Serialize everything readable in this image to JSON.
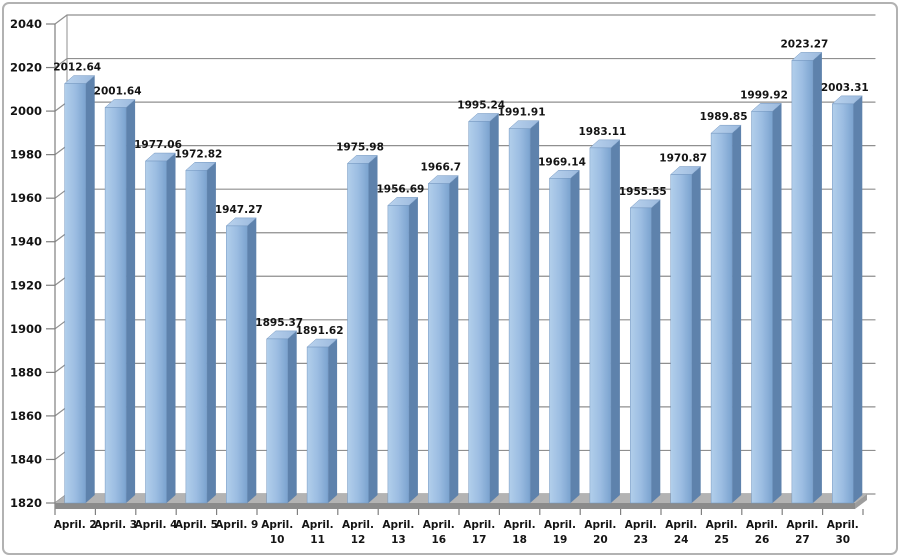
{
  "window": {
    "background": "#ffffff",
    "border_color": "#b2b2b2"
  },
  "chart_data": {
    "type": "bar",
    "style": "3d-clustered",
    "title": "",
    "xlabel": "",
    "ylabel": "",
    "legend": "none",
    "grid": true,
    "data_labels": true,
    "ylim": [
      1820,
      2040
    ],
    "ytick_step": 20,
    "yticks": [
      1820,
      1840,
      1860,
      1880,
      1900,
      1920,
      1940,
      1960,
      1980,
      2000,
      2020,
      2040
    ],
    "categories": [
      "April. 2",
      "April. 3",
      "April. 4",
      "April. 5",
      "April. 9",
      "April. 10",
      "April. 11",
      "April. 12",
      "April. 13",
      "April. 16",
      "April. 17",
      "April. 18",
      "April. 19",
      "April. 20",
      "April. 23",
      "April. 24",
      "April. 25",
      "April. 26",
      "April. 27",
      "April. 30"
    ],
    "values": [
      2012.64,
      2001.64,
      1977.06,
      1972.82,
      1947.27,
      1895.37,
      1891.62,
      1975.98,
      1956.69,
      1966.7,
      1995.24,
      1991.91,
      1969.14,
      1983.11,
      1955.55,
      1970.87,
      1989.85,
      1999.92,
      2023.27,
      2003.31
    ],
    "colors": {
      "bar_front_light": "#b2cfeb",
      "bar_front_mid": "#9cbde2",
      "bar_front_dark": "#7ba3cf",
      "bar_side": "#5e82ac",
      "bar_top": "#bad3ee",
      "bar_edge": "#7396bf",
      "gridline": "#8f8f8f",
      "axis": "#7f7f7f",
      "floor_top": "#b3b3b3",
      "floor_front": "#8b8b8b",
      "floor_side": "#9d9d9d",
      "label_text": "#141414"
    }
  }
}
